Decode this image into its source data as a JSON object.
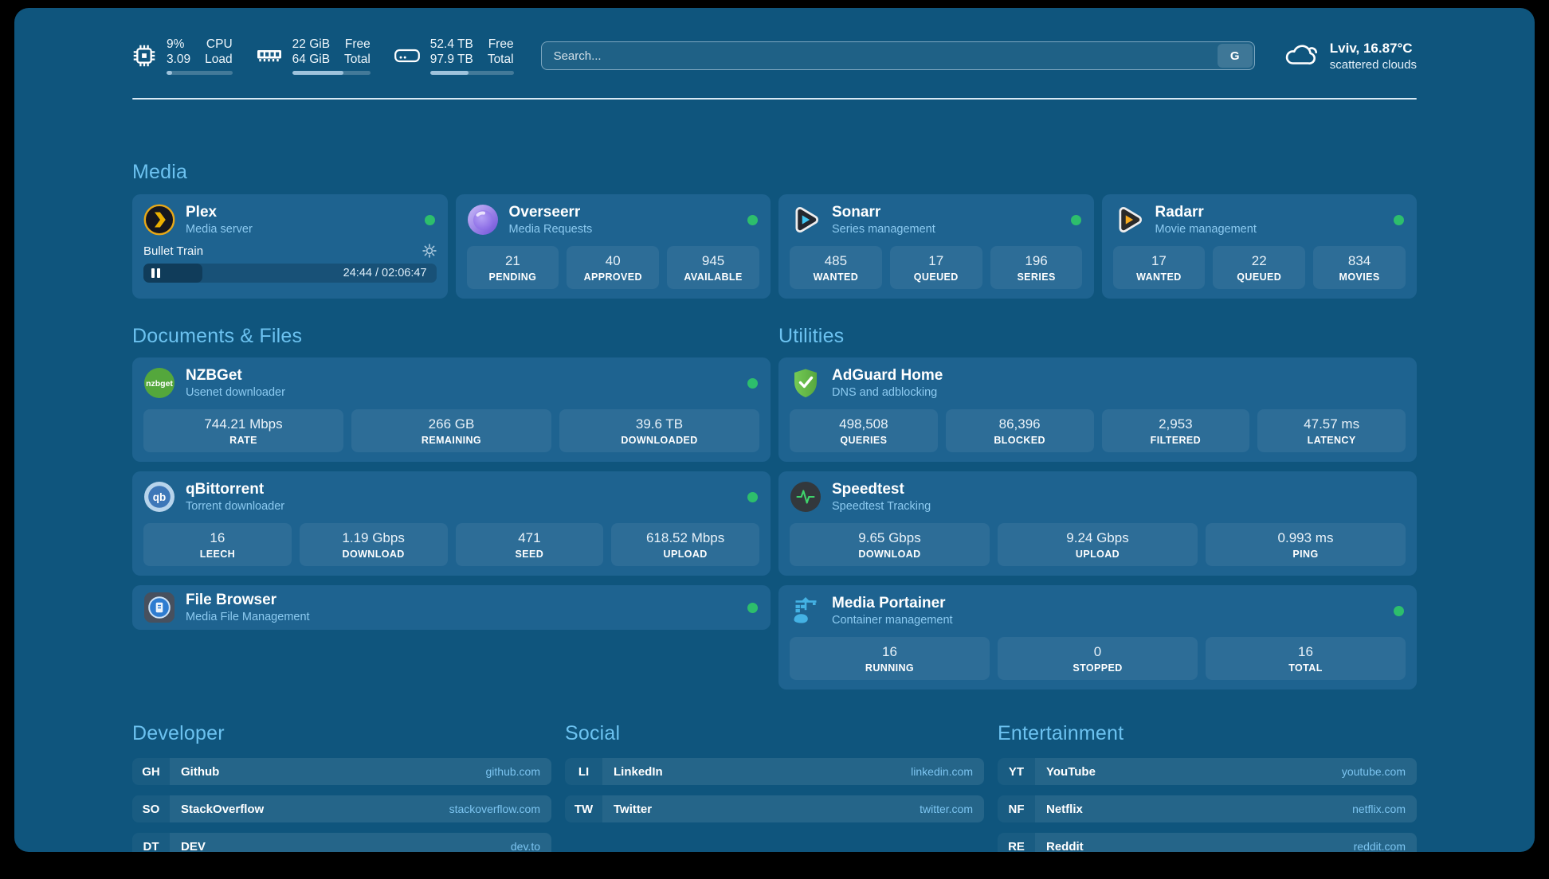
{
  "topbar": {
    "resources": [
      {
        "icon": "cpu-icon",
        "values": [
          "9%",
          "3.09"
        ],
        "labels": [
          "CPU",
          "Load"
        ],
        "bar_percent": 9
      },
      {
        "icon": "memory-icon",
        "values": [
          "22 GiB",
          "64 GiB"
        ],
        "labels": [
          "Free",
          "Total"
        ],
        "bar_percent": 66
      },
      {
        "icon": "disk-icon",
        "values": [
          "52.4 TB",
          "97.9 TB"
        ],
        "labels": [
          "Free",
          "Total"
        ],
        "bar_percent": 46
      }
    ],
    "search": {
      "placeholder": "Search...",
      "button_label": "G"
    },
    "weather": {
      "icon": "cloud-icon",
      "line1": "Lviv, 16.87°C",
      "line2": "scattered clouds"
    }
  },
  "sections": {
    "media": {
      "title": "Media",
      "services": [
        {
          "icon": "plex-icon",
          "name": "Plex",
          "subtitle": "Media server",
          "online": true,
          "player": {
            "media_title": "Bullet Train",
            "time_display": "24:44 / 02:06:47",
            "progress_percent": 20
          }
        },
        {
          "icon": "overseerr-icon",
          "name": "Overseerr",
          "subtitle": "Media Requests",
          "online": true,
          "stats": [
            {
              "value": "21",
              "label": "PENDING"
            },
            {
              "value": "40",
              "label": "APPROVED"
            },
            {
              "value": "945",
              "label": "AVAILABLE"
            }
          ]
        },
        {
          "icon": "sonarr-icon",
          "name": "Sonarr",
          "subtitle": "Series management",
          "online": true,
          "stats": [
            {
              "value": "485",
              "label": "WANTED"
            },
            {
              "value": "17",
              "label": "QUEUED"
            },
            {
              "value": "196",
              "label": "SERIES"
            }
          ]
        },
        {
          "icon": "radarr-icon",
          "name": "Radarr",
          "subtitle": "Movie management",
          "online": true,
          "stats": [
            {
              "value": "17",
              "label": "WANTED"
            },
            {
              "value": "22",
              "label": "QUEUED"
            },
            {
              "value": "834",
              "label": "MOVIES"
            }
          ]
        }
      ]
    },
    "documents": {
      "title": "Documents & Files",
      "services": [
        {
          "icon": "nzbget-icon",
          "name": "NZBGet",
          "subtitle": "Usenet downloader",
          "online": true,
          "stats": [
            {
              "value": "744.21 Mbps",
              "label": "RATE"
            },
            {
              "value": "266 GB",
              "label": "REMAINING"
            },
            {
              "value": "39.6 TB",
              "label": "DOWNLOADED"
            }
          ]
        },
        {
          "icon": "qbittorrent-icon",
          "name": "qBittorrent",
          "subtitle": "Torrent downloader",
          "online": true,
          "stats": [
            {
              "value": "16",
              "label": "LEECH"
            },
            {
              "value": "1.19 Gbps",
              "label": "DOWNLOAD"
            },
            {
              "value": "471",
              "label": "SEED"
            },
            {
              "value": "618.52 Mbps",
              "label": "UPLOAD"
            }
          ]
        },
        {
          "icon": "filebrowser-icon",
          "name": "File Browser",
          "subtitle": "Media File Management",
          "online": true,
          "compact": true
        }
      ]
    },
    "utilities": {
      "title": "Utilities",
      "services": [
        {
          "icon": "adguard-icon",
          "name": "AdGuard Home",
          "subtitle": "DNS and adblocking",
          "online": false,
          "stats": [
            {
              "value": "498,508",
              "label": "QUERIES"
            },
            {
              "value": "86,396",
              "label": "BLOCKED"
            },
            {
              "value": "2,953",
              "label": "FILTERED"
            },
            {
              "value": "47.57 ms",
              "label": "LATENCY"
            }
          ]
        },
        {
          "icon": "speedtest-icon",
          "name": "Speedtest",
          "subtitle": "Speedtest Tracking",
          "online": false,
          "stats": [
            {
              "value": "9.65 Gbps",
              "label": "DOWNLOAD"
            },
            {
              "value": "9.24 Gbps",
              "label": "UPLOAD"
            },
            {
              "value": "0.993 ms",
              "label": "PING"
            }
          ]
        },
        {
          "icon": "portainer-icon",
          "name": "Media Portainer",
          "subtitle": "Container management",
          "online": true,
          "stats": [
            {
              "value": "16",
              "label": "RUNNING"
            },
            {
              "value": "0",
              "label": "STOPPED"
            },
            {
              "value": "16",
              "label": "TOTAL"
            }
          ]
        }
      ]
    }
  },
  "bookmarks": [
    {
      "title": "Developer",
      "items": [
        {
          "abbr": "GH",
          "name": "Github",
          "url": "github.com"
        },
        {
          "abbr": "SO",
          "name": "StackOverflow",
          "url": "stackoverflow.com"
        },
        {
          "abbr": "DT",
          "name": "DEV",
          "url": "dev.to"
        }
      ]
    },
    {
      "title": "Social",
      "items": [
        {
          "abbr": "LI",
          "name": "LinkedIn",
          "url": "linkedin.com"
        },
        {
          "abbr": "TW",
          "name": "Twitter",
          "url": "twitter.com"
        }
      ]
    },
    {
      "title": "Entertainment",
      "items": [
        {
          "abbr": "YT",
          "name": "YouTube",
          "url": "youtube.com"
        },
        {
          "abbr": "NF",
          "name": "Netflix",
          "url": "netflix.com"
        },
        {
          "abbr": "RE",
          "name": "Reddit",
          "url": "reddit.com"
        }
      ]
    }
  ],
  "colors": {
    "status_online": "#2dbe6c",
    "heading_accent": "#6cc2f0",
    "link": "#7cc4f0"
  }
}
